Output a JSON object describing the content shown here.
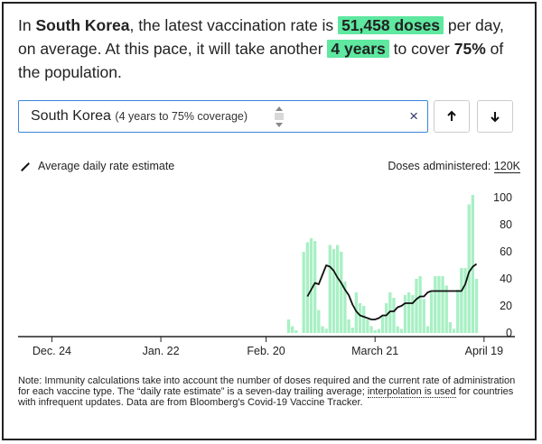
{
  "headline": {
    "p1": "In ",
    "country": "South Korea",
    "p2": ", the latest vaccination rate is ",
    "rate": "51,458 doses",
    "p3": " per day, on average. At this pace, it will take another ",
    "duration": "4 years",
    "p4": " to cover ",
    "target": "75%",
    "p5": " of the population."
  },
  "search": {
    "country": "South Korea",
    "detail": "(4 years to 75% coverage)",
    "clear_icon": "×"
  },
  "buttons": {
    "up_label": "🠕",
    "down_label": "🠗"
  },
  "legend": {
    "label": "Average daily rate estimate"
  },
  "yaxis_title": {
    "prefix": "Doses administered: ",
    "unit": "120K"
  },
  "chart_data": {
    "type": "bar",
    "ylim": [
      0,
      120000
    ],
    "yticks": [
      {
        "value": 100000,
        "label": "100"
      },
      {
        "value": 80000,
        "label": "80"
      },
      {
        "value": 60000,
        "label": "60"
      },
      {
        "value": 40000,
        "label": "40"
      },
      {
        "value": 20000,
        "label": "20"
      },
      {
        "value": 0,
        "label": "0"
      }
    ],
    "xticks": [
      {
        "day": 0,
        "label": "Dec. 24"
      },
      {
        "day": 29,
        "label": "Jan. 22"
      },
      {
        "day": 57,
        "label": "Feb. 20"
      },
      {
        "day": 86,
        "label": "March 21"
      },
      {
        "day": 115,
        "label": "April 19"
      }
    ],
    "x_range": [
      -9,
      116
    ],
    "bar_color": "#a8f0c4",
    "line_color": "#111111",
    "bars": [
      {
        "day": 63,
        "v": 10000
      },
      {
        "day": 64,
        "v": 5000
      },
      {
        "day": 65,
        "v": 2000
      },
      {
        "day": 67,
        "v": 60000
      },
      {
        "day": 68,
        "v": 67000
      },
      {
        "day": 69,
        "v": 70000
      },
      {
        "day": 70,
        "v": 68000
      },
      {
        "day": 71,
        "v": 17000
      },
      {
        "day": 72,
        "v": 5000
      },
      {
        "day": 73,
        "v": 3000
      },
      {
        "day": 74,
        "v": 65000
      },
      {
        "day": 75,
        "v": 62000
      },
      {
        "day": 76,
        "v": 65000
      },
      {
        "day": 77,
        "v": 60000
      },
      {
        "day": 78,
        "v": 38000
      },
      {
        "day": 79,
        "v": 10000
      },
      {
        "day": 80,
        "v": 4000
      },
      {
        "day": 81,
        "v": 30000
      },
      {
        "day": 82,
        "v": 22000
      },
      {
        "day": 83,
        "v": 20000
      },
      {
        "day": 84,
        "v": 10000
      },
      {
        "day": 85,
        "v": 5000
      },
      {
        "day": 86,
        "v": 2000
      },
      {
        "day": 87,
        "v": 3000
      },
      {
        "day": 88,
        "v": 13000
      },
      {
        "day": 89,
        "v": 22000
      },
      {
        "day": 90,
        "v": 30000
      },
      {
        "day": 91,
        "v": 26000
      },
      {
        "day": 92,
        "v": 5000
      },
      {
        "day": 93,
        "v": 3000
      },
      {
        "day": 94,
        "v": 28000
      },
      {
        "day": 95,
        "v": 30000
      },
      {
        "day": 96,
        "v": 28000
      },
      {
        "day": 97,
        "v": 40000
      },
      {
        "day": 98,
        "v": 42000
      },
      {
        "day": 99,
        "v": 25000
      },
      {
        "day": 100,
        "v": 5000
      },
      {
        "day": 101,
        "v": 30000
      },
      {
        "day": 102,
        "v": 42000
      },
      {
        "day": 103,
        "v": 42000
      },
      {
        "day": 104,
        "v": 42000
      },
      {
        "day": 105,
        "v": 35000
      },
      {
        "day": 106,
        "v": 8000
      },
      {
        "day": 107,
        "v": 3000
      },
      {
        "day": 108,
        "v": 32000
      },
      {
        "day": 109,
        "v": 48000
      },
      {
        "day": 110,
        "v": 48000
      },
      {
        "day": 111,
        "v": 95000
      },
      {
        "day": 112,
        "v": 102000
      },
      {
        "day": 113,
        "v": 40000
      }
    ],
    "line": [
      [
        68,
        27000
      ],
      [
        69,
        32000
      ],
      [
        70,
        37000
      ],
      [
        71,
        36000
      ],
      [
        72,
        43000
      ],
      [
        73,
        50000
      ],
      [
        74,
        49000
      ],
      [
        75,
        46000
      ],
      [
        76,
        41000
      ],
      [
        77,
        37000
      ],
      [
        78,
        32000
      ],
      [
        79,
        28000
      ],
      [
        80,
        21000
      ],
      [
        81,
        16000
      ],
      [
        82,
        13000
      ],
      [
        83,
        12000
      ],
      [
        84,
        11000
      ],
      [
        85,
        10000
      ],
      [
        86,
        10000
      ],
      [
        87,
        11000
      ],
      [
        88,
        13000
      ],
      [
        89,
        13000
      ],
      [
        90,
        16000
      ],
      [
        91,
        16000
      ],
      [
        92,
        19000
      ],
      [
        93,
        20000
      ],
      [
        94,
        22000
      ],
      [
        95,
        22000
      ],
      [
        96,
        22000
      ],
      [
        97,
        25000
      ],
      [
        98,
        27000
      ],
      [
        99,
        27000
      ],
      [
        100,
        30000
      ],
      [
        101,
        31000
      ],
      [
        102,
        31000
      ],
      [
        103,
        31000
      ],
      [
        104,
        31000
      ],
      [
        105,
        31000
      ],
      [
        106,
        31000
      ],
      [
        107,
        31000
      ],
      [
        108,
        31000
      ],
      [
        109,
        31000
      ],
      [
        110,
        36000
      ],
      [
        111,
        45000
      ],
      [
        112,
        49000
      ],
      [
        113,
        51000
      ]
    ]
  },
  "note": {
    "p1": "Note: Immunity calculations take into account the number of doses required and the current rate of administration for each vaccine type. The “daily rate estimate” is a seven-day trailing average; ",
    "link": "interpolation is used",
    "p2": " for countries with infrequent updates. Data are from Bloomberg's Covid-19 Vaccine Tracker."
  }
}
